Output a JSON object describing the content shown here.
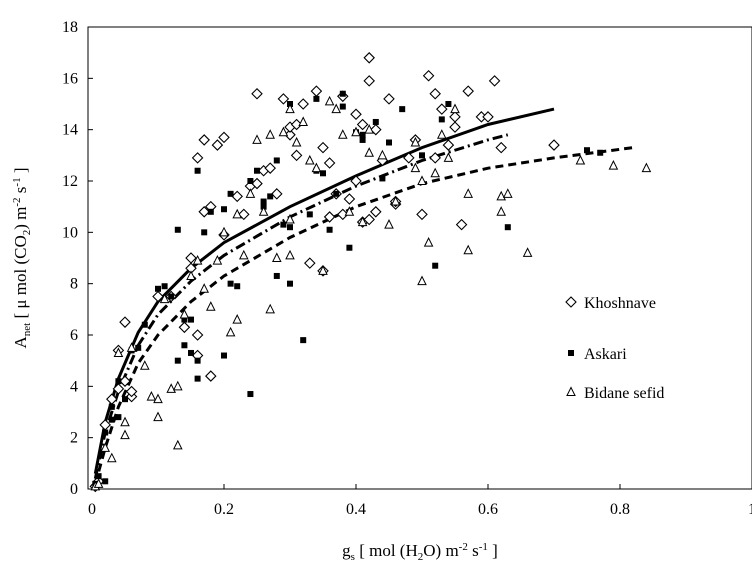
{
  "chart_data": {
    "type": "scatter",
    "xlim": [
      0,
      1
    ],
    "ylim": [
      0,
      18
    ],
    "x_ticks": [
      "0",
      "0.2",
      "0.4",
      "0.6",
      "0.8",
      "1"
    ],
    "y_ticks": [
      "0",
      "2",
      "4",
      "6",
      "8",
      "10",
      "12",
      "14",
      "16",
      "18"
    ],
    "xlabel": {
      "prefix": "g",
      "sub": "s",
      "mid1": " [ mol (H",
      "sub2": "2",
      "mid2": "O) m",
      "sup1": "-2",
      "mid3": " s",
      "sup2": "-1",
      "suffix": " ]"
    },
    "ylabel": {
      "prefix": "A",
      "sub": "net",
      "mid1": " [ μ mol (CO",
      "sub2": "2",
      "mid2": ") m",
      "sup1": "-2",
      "mid3": " s",
      "sup2": "-1",
      "suffix": " ]"
    },
    "legend_position": "right",
    "series": [
      {
        "name": "Khoshnave",
        "marker": "diamond",
        "fit_style": "solid",
        "fit": [
          [
            0.005,
            0.6
          ],
          [
            0.02,
            2.6
          ],
          [
            0.04,
            4.3
          ],
          [
            0.07,
            6.1
          ],
          [
            0.1,
            7.3
          ],
          [
            0.15,
            8.6
          ],
          [
            0.2,
            9.6
          ],
          [
            0.3,
            11.0
          ],
          [
            0.4,
            12.2
          ],
          [
            0.5,
            13.3
          ],
          [
            0.6,
            14.2
          ],
          [
            0.7,
            14.8
          ]
        ],
        "points": [
          [
            0.005,
            0.1
          ],
          [
            0.01,
            0.3
          ],
          [
            0.02,
            2.5
          ],
          [
            0.03,
            3.5
          ],
          [
            0.04,
            3.9
          ],
          [
            0.05,
            4.2
          ],
          [
            0.04,
            5.4
          ],
          [
            0.05,
            6.5
          ],
          [
            0.06,
            3.6
          ],
          [
            0.06,
            3.8
          ],
          [
            0.1,
            7.5
          ],
          [
            0.12,
            7.5
          ],
          [
            0.14,
            6.3
          ],
          [
            0.15,
            8.6
          ],
          [
            0.15,
            9.0
          ],
          [
            0.16,
            5.2
          ],
          [
            0.16,
            6.0
          ],
          [
            0.16,
            12.9
          ],
          [
            0.17,
            10.8
          ],
          [
            0.18,
            11.0
          ],
          [
            0.17,
            13.6
          ],
          [
            0.19,
            13.4
          ],
          [
            0.2,
            13.7
          ],
          [
            0.18,
            4.4
          ],
          [
            0.2,
            9.9
          ],
          [
            0.22,
            11.4
          ],
          [
            0.23,
            10.7
          ],
          [
            0.24,
            11.8
          ],
          [
            0.25,
            11.9
          ],
          [
            0.25,
            15.4
          ],
          [
            0.26,
            12.4
          ],
          [
            0.27,
            12.5
          ],
          [
            0.28,
            11.5
          ],
          [
            0.29,
            15.2
          ],
          [
            0.3,
            13.8
          ],
          [
            0.3,
            14.1
          ],
          [
            0.31,
            14.2
          ],
          [
            0.31,
            13.0
          ],
          [
            0.32,
            15.0
          ],
          [
            0.33,
            8.8
          ],
          [
            0.34,
            15.5
          ],
          [
            0.35,
            13.3
          ],
          [
            0.35,
            8.5
          ],
          [
            0.36,
            12.7
          ],
          [
            0.36,
            10.6
          ],
          [
            0.37,
            11.5
          ],
          [
            0.38,
            10.7
          ],
          [
            0.39,
            11.3
          ],
          [
            0.38,
            15.3
          ],
          [
            0.4,
            14.6
          ],
          [
            0.4,
            12.0
          ],
          [
            0.41,
            14.2
          ],
          [
            0.41,
            10.4
          ],
          [
            0.42,
            10.5
          ],
          [
            0.42,
            15.9
          ],
          [
            0.42,
            16.8
          ],
          [
            0.43,
            10.8
          ],
          [
            0.43,
            14.0
          ],
          [
            0.44,
            12.8
          ],
          [
            0.45,
            15.2
          ],
          [
            0.46,
            11.1
          ],
          [
            0.46,
            11.2
          ],
          [
            0.48,
            12.9
          ],
          [
            0.49,
            13.6
          ],
          [
            0.5,
            10.7
          ],
          [
            0.51,
            16.1
          ],
          [
            0.52,
            15.4
          ],
          [
            0.52,
            12.9
          ],
          [
            0.53,
            14.8
          ],
          [
            0.54,
            13.4
          ],
          [
            0.55,
            14.5
          ],
          [
            0.55,
            14.1
          ],
          [
            0.56,
            10.3
          ],
          [
            0.57,
            15.5
          ],
          [
            0.59,
            14.5
          ],
          [
            0.6,
            14.5
          ],
          [
            0.61,
            15.9
          ],
          [
            0.62,
            13.3
          ],
          [
            0.7,
            13.4
          ]
        ]
      },
      {
        "name": "Askari",
        "marker": "square",
        "fit_style": "dashdot",
        "fit": [
          [
            0.005,
            0.4
          ],
          [
            0.02,
            2.2
          ],
          [
            0.04,
            3.8
          ],
          [
            0.07,
            5.6
          ],
          [
            0.1,
            6.8
          ],
          [
            0.15,
            8.1
          ],
          [
            0.2,
            9.1
          ],
          [
            0.3,
            10.6
          ],
          [
            0.4,
            11.8
          ],
          [
            0.5,
            12.8
          ],
          [
            0.6,
            13.6
          ],
          [
            0.63,
            13.8
          ]
        ],
        "points": [
          [
            0.005,
            0.2
          ],
          [
            0.01,
            0.5
          ],
          [
            0.02,
            0.3
          ],
          [
            0.02,
            2.2
          ],
          [
            0.03,
            2.7
          ],
          [
            0.03,
            3.2
          ],
          [
            0.04,
            2.8
          ],
          [
            0.04,
            4.2
          ],
          [
            0.05,
            3.5
          ],
          [
            0.06,
            5.4
          ],
          [
            0.07,
            5.5
          ],
          [
            0.08,
            6.4
          ],
          [
            0.1,
            7.8
          ],
          [
            0.11,
            7.9
          ],
          [
            0.12,
            7.5
          ],
          [
            0.13,
            10.1
          ],
          [
            0.13,
            5.0
          ],
          [
            0.14,
            5.6
          ],
          [
            0.14,
            6.6
          ],
          [
            0.15,
            5.3
          ],
          [
            0.15,
            6.6
          ],
          [
            0.16,
            5.0
          ],
          [
            0.16,
            4.3
          ],
          [
            0.16,
            12.4
          ],
          [
            0.17,
            10.0
          ],
          [
            0.18,
            10.8
          ],
          [
            0.2,
            5.2
          ],
          [
            0.2,
            10.9
          ],
          [
            0.21,
            11.5
          ],
          [
            0.21,
            8.0
          ],
          [
            0.22,
            7.9
          ],
          [
            0.24,
            3.7
          ],
          [
            0.24,
            12.0
          ],
          [
            0.25,
            12.4
          ],
          [
            0.26,
            11.2
          ],
          [
            0.26,
            11.0
          ],
          [
            0.27,
            11.4
          ],
          [
            0.28,
            12.8
          ],
          [
            0.28,
            8.3
          ],
          [
            0.29,
            10.3
          ],
          [
            0.3,
            10.2
          ],
          [
            0.3,
            8.0
          ],
          [
            0.3,
            15.0
          ],
          [
            0.32,
            5.8
          ],
          [
            0.33,
            10.7
          ],
          [
            0.34,
            12.4
          ],
          [
            0.34,
            15.2
          ],
          [
            0.35,
            12.3
          ],
          [
            0.36,
            10.1
          ],
          [
            0.37,
            11.5
          ],
          [
            0.38,
            15.4
          ],
          [
            0.38,
            14.9
          ],
          [
            0.39,
            9.4
          ],
          [
            0.4,
            13.9
          ],
          [
            0.41,
            13.6
          ],
          [
            0.41,
            13.8
          ],
          [
            0.43,
            14.3
          ],
          [
            0.44,
            12.1
          ],
          [
            0.45,
            13.5
          ],
          [
            0.47,
            14.8
          ],
          [
            0.5,
            13.0
          ],
          [
            0.52,
            8.7
          ],
          [
            0.53,
            14.4
          ],
          [
            0.54,
            15.0
          ],
          [
            0.63,
            10.2
          ],
          [
            0.75,
            13.2
          ],
          [
            0.77,
            13.1
          ]
        ]
      },
      {
        "name": "Bidane sefid",
        "marker": "triangle",
        "fit_style": "dashed",
        "fit": [
          [
            0.005,
            0.2
          ],
          [
            0.02,
            1.6
          ],
          [
            0.04,
            3.2
          ],
          [
            0.07,
            4.9
          ],
          [
            0.1,
            6.0
          ],
          [
            0.15,
            7.3
          ],
          [
            0.2,
            8.3
          ],
          [
            0.3,
            9.8
          ],
          [
            0.4,
            11.0
          ],
          [
            0.5,
            11.9
          ],
          [
            0.6,
            12.5
          ],
          [
            0.7,
            12.9
          ],
          [
            0.82,
            13.3
          ]
        ],
        "points": [
          [
            0.005,
            0.1
          ],
          [
            0.01,
            0.2
          ],
          [
            0.02,
            1.6
          ],
          [
            0.03,
            1.2
          ],
          [
            0.04,
            5.3
          ],
          [
            0.05,
            2.6
          ],
          [
            0.05,
            2.1
          ],
          [
            0.06,
            5.5
          ],
          [
            0.08,
            4.8
          ],
          [
            0.09,
            3.6
          ],
          [
            0.1,
            2.8
          ],
          [
            0.1,
            3.5
          ],
          [
            0.11,
            7.4
          ],
          [
            0.12,
            3.9
          ],
          [
            0.13,
            4.0
          ],
          [
            0.13,
            1.7
          ],
          [
            0.14,
            6.8
          ],
          [
            0.15,
            8.3
          ],
          [
            0.16,
            8.9
          ],
          [
            0.17,
            7.8
          ],
          [
            0.18,
            7.1
          ],
          [
            0.19,
            8.9
          ],
          [
            0.2,
            10.0
          ],
          [
            0.21,
            6.1
          ],
          [
            0.22,
            6.6
          ],
          [
            0.22,
            10.7
          ],
          [
            0.23,
            9.1
          ],
          [
            0.24,
            11.5
          ],
          [
            0.25,
            13.6
          ],
          [
            0.26,
            10.8
          ],
          [
            0.27,
            7.0
          ],
          [
            0.27,
            13.8
          ],
          [
            0.28,
            9.0
          ],
          [
            0.29,
            13.9
          ],
          [
            0.3,
            10.5
          ],
          [
            0.3,
            9.1
          ],
          [
            0.3,
            14.8
          ],
          [
            0.31,
            13.5
          ],
          [
            0.32,
            14.3
          ],
          [
            0.33,
            12.8
          ],
          [
            0.34,
            12.5
          ],
          [
            0.35,
            8.5
          ],
          [
            0.36,
            15.1
          ],
          [
            0.37,
            14.8
          ],
          [
            0.38,
            13.8
          ],
          [
            0.39,
            10.8
          ],
          [
            0.4,
            13.9
          ],
          [
            0.41,
            10.4
          ],
          [
            0.42,
            13.1
          ],
          [
            0.42,
            14.0
          ],
          [
            0.44,
            13.0
          ],
          [
            0.45,
            10.3
          ],
          [
            0.46,
            11.2
          ],
          [
            0.49,
            13.5
          ],
          [
            0.49,
            12.5
          ],
          [
            0.5,
            8.1
          ],
          [
            0.5,
            12.0
          ],
          [
            0.51,
            9.6
          ],
          [
            0.52,
            12.3
          ],
          [
            0.53,
            13.8
          ],
          [
            0.54,
            12.9
          ],
          [
            0.55,
            14.8
          ],
          [
            0.57,
            11.5
          ],
          [
            0.57,
            9.3
          ],
          [
            0.62,
            10.8
          ],
          [
            0.62,
            11.4
          ],
          [
            0.63,
            11.5
          ],
          [
            0.66,
            9.2
          ],
          [
            0.74,
            12.8
          ],
          [
            0.79,
            12.6
          ],
          [
            0.84,
            12.5
          ]
        ]
      }
    ]
  }
}
